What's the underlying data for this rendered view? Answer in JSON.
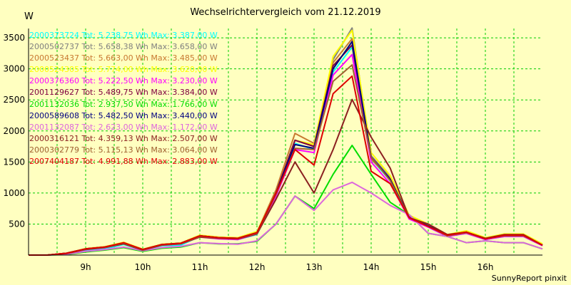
{
  "header": {
    "title": "Wechselrichtervergleich vom 21.12.2019",
    "unit": "W"
  },
  "footer": {
    "text": "SunnyReport pinxit"
  },
  "chart_data": {
    "type": "line",
    "title": "Wechselrichtervergleich vom 21.12.2019",
    "ylabel": "W",
    "xlabel": "",
    "x": [
      "08:00",
      "08:20",
      "08:40",
      "09:00",
      "09:20",
      "09:40",
      "10:00",
      "10:20",
      "10:40",
      "11:00",
      "11:20",
      "11:40",
      "12:00",
      "12:20",
      "12:40",
      "13:00",
      "13:20",
      "13:40",
      "14:00",
      "14:20",
      "14:40",
      "15:00",
      "15:20",
      "15:40",
      "16:00",
      "16:20",
      "16:40",
      "17:00"
    ],
    "xticks": [
      "9h",
      "10h",
      "11h",
      "12h",
      "13h",
      "14h",
      "15h",
      "16h"
    ],
    "yticks": [
      500,
      1000,
      1500,
      2000,
      2500,
      3000,
      3500
    ],
    "ylim": [
      0,
      3650
    ],
    "xlim": [
      "08:00",
      "17:00"
    ],
    "grid": true,
    "legend_position": "top-left",
    "series": [
      {
        "name": "2000373724",
        "color": "#00ffff",
        "legend": "2000373724 Tot: 5.238,75 Wh Max: 3.387,00 W",
        "values": [
          0,
          0,
          20,
          80,
          100,
          170,
          80,
          150,
          160,
          300,
          270,
          250,
          330,
          950,
          1800,
          1700,
          2950,
          3350,
          1550,
          1200,
          600,
          450,
          300,
          350,
          250,
          300,
          300,
          150
        ]
      },
      {
        "name": "2000502737",
        "color": "#808080",
        "legend": "2000502737 Tot: 5.658,38 Wh Max: 3.658,00 W",
        "values": [
          0,
          0,
          30,
          100,
          130,
          200,
          90,
          170,
          190,
          310,
          280,
          270,
          370,
          1000,
          1850,
          1750,
          3150,
          3658,
          1600,
          1250,
          620,
          480,
          320,
          380,
          270,
          330,
          330,
          170
        ]
      },
      {
        "name": "2000523437",
        "color": "#c87830",
        "legend": "2000523437 Tot: 5.663,00 Wh Max: 3.485,00 W",
        "values": [
          0,
          0,
          30,
          100,
          130,
          200,
          90,
          170,
          190,
          310,
          280,
          270,
          370,
          1050,
          1960,
          1800,
          3100,
          3485,
          1550,
          1230,
          610,
          470,
          320,
          370,
          260,
          320,
          320,
          160
        ]
      },
      {
        "name": "2000524305",
        "color": "#ffff00",
        "legend": "2000524305 Tot: 5.774,00 Wh Max: 3.620,00 W",
        "values": [
          0,
          0,
          30,
          105,
          135,
          205,
          95,
          175,
          195,
          320,
          290,
          280,
          380,
          1000,
          1850,
          1780,
          3200,
          3620,
          1650,
          1280,
          640,
          500,
          330,
          390,
          280,
          340,
          340,
          180
        ]
      },
      {
        "name": "2000376360",
        "color": "#ff00ff",
        "legend": "2000376360 Tot: 5.222,50 Wh Max: 3.230,00 W",
        "values": [
          0,
          0,
          25,
          90,
          120,
          185,
          85,
          160,
          180,
          290,
          260,
          250,
          340,
          950,
          1700,
          1650,
          2900,
          3230,
          1500,
          1150,
          580,
          450,
          300,
          350,
          250,
          300,
          300,
          150
        ]
      },
      {
        "name": "2001129627",
        "color": "#800040",
        "legend": "2001129627 Tot: 5.489,75 Wh Max: 3.384,00 W",
        "values": [
          0,
          0,
          30,
          100,
          130,
          195,
          90,
          170,
          190,
          310,
          280,
          270,
          360,
          1000,
          1850,
          1750,
          3050,
          3384,
          1580,
          1220,
          610,
          470,
          320,
          370,
          260,
          320,
          320,
          160
        ]
      },
      {
        "name": "2001132036",
        "color": "#00dd00",
        "legend": "2001132036 Tot: 2.937,50 Wh Max: 1.766,00 W",
        "values": [
          0,
          0,
          10,
          50,
          80,
          120,
          60,
          110,
          130,
          200,
          180,
          180,
          220,
          500,
          950,
          750,
          1300,
          1766,
          1300,
          850,
          650,
          350,
          300,
          200,
          230,
          200,
          200,
          100
        ]
      },
      {
        "name": "2000589608",
        "color": "#000080",
        "legend": "2000589608 Tot: 5.482,50 Wh Max: 3.440,00 W",
        "values": [
          0,
          0,
          30,
          100,
          130,
          195,
          90,
          170,
          190,
          310,
          280,
          270,
          360,
          1000,
          1780,
          1720,
          3000,
          3440,
          1580,
          1220,
          610,
          470,
          320,
          370,
          260,
          320,
          320,
          160
        ]
      },
      {
        "name": "2001132087",
        "color": "#dd66dd",
        "legend": "2001132087 Tot: 2.623,00 Wh Max: 1.172,00 W",
        "values": [
          0,
          0,
          15,
          60,
          90,
          130,
          70,
          120,
          140,
          200,
          185,
          175,
          230,
          500,
          950,
          720,
          1050,
          1172,
          1000,
          800,
          650,
          350,
          300,
          200,
          230,
          200,
          200,
          100
        ]
      },
      {
        "name": "2000316121",
        "color": "#8b2020",
        "legend": "2000316121 Tot: 4.359,13 Wh Max: 2.507,00 W",
        "values": [
          0,
          0,
          25,
          90,
          120,
          180,
          80,
          160,
          180,
          290,
          270,
          260,
          340,
          900,
          1500,
          1000,
          1700,
          2507,
          1900,
          1400,
          600,
          500,
          330,
          370,
          270,
          330,
          330,
          160
        ]
      },
      {
        "name": "2000302779",
        "color": "#a06030",
        "legend": "2000302779 Tot: 5.115,13 Wh Max: 3.064,00 W",
        "values": [
          0,
          0,
          30,
          95,
          125,
          190,
          85,
          165,
          185,
          300,
          275,
          265,
          350,
          980,
          1720,
          1700,
          2800,
          3064,
          1580,
          1200,
          600,
          460,
          310,
          360,
          260,
          310,
          310,
          160
        ]
      },
      {
        "name": "2007404187",
        "color": "#dd0000",
        "legend": "2007404187 Tot: 4.991,88 Wh Max: 2.883,00 W",
        "values": [
          0,
          0,
          30,
          100,
          130,
          200,
          90,
          170,
          190,
          310,
          280,
          270,
          360,
          1000,
          1700,
          1450,
          2600,
          2883,
          1350,
          1150,
          600,
          460,
          320,
          370,
          260,
          320,
          320,
          160
        ]
      }
    ]
  }
}
